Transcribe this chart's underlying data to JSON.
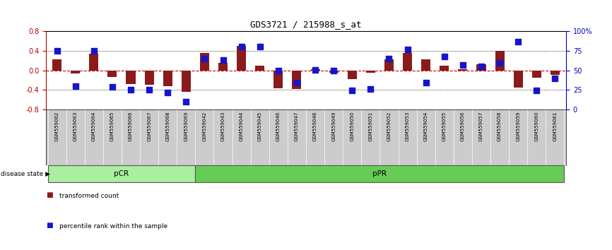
{
  "title": "GDS3721 / 215988_s_at",
  "categories": [
    "GSM559062",
    "GSM559063",
    "GSM559064",
    "GSM559065",
    "GSM559066",
    "GSM559067",
    "GSM559068",
    "GSM559069",
    "GSM559042",
    "GSM559043",
    "GSM559044",
    "GSM559045",
    "GSM559046",
    "GSM559047",
    "GSM559048",
    "GSM559049",
    "GSM559050",
    "GSM559051",
    "GSM559052",
    "GSM559053",
    "GSM559054",
    "GSM559055",
    "GSM559056",
    "GSM559057",
    "GSM559058",
    "GSM559059",
    "GSM559060",
    "GSM559061"
  ],
  "red_bars": [
    0.22,
    -0.07,
    0.34,
    -0.13,
    -0.28,
    -0.3,
    -0.32,
    -0.44,
    0.36,
    0.15,
    0.5,
    0.1,
    -0.36,
    -0.38,
    0.02,
    -0.05,
    -0.18,
    -0.05,
    0.22,
    0.36,
    0.22,
    0.1,
    0.02,
    0.12,
    0.4,
    -0.35,
    -0.15,
    -0.09
  ],
  "blue_pct": [
    75,
    30,
    75,
    29,
    25,
    25,
    22,
    10,
    65,
    63,
    80,
    80,
    50,
    34,
    51,
    50,
    24,
    26,
    65,
    77,
    34,
    68,
    57,
    55,
    60,
    87,
    24,
    40
  ],
  "pcr_count": 8,
  "ppr_count": 20,
  "ylim": [
    -0.8,
    0.8
  ],
  "y_left_ticks": [
    -0.8,
    -0.4,
    0.0,
    0.4,
    0.8
  ],
  "y_right_ticks": [
    0,
    25,
    50,
    75,
    100
  ],
  "y_right_labels": [
    "0",
    "25",
    "50",
    "75",
    "100%"
  ],
  "bar_color": "#8B1A1A",
  "dot_color": "#1515CC",
  "pcr_color": "#AAEEA0",
  "ppr_color": "#66CC55",
  "pcr_label": "pCR",
  "ppr_label": "pPR",
  "disease_state_label": "disease state",
  "legend_red": "transformed count",
  "legend_blue": "percentile rank within the sample",
  "title_color": "#000000",
  "left_axis_color": "#BB0000",
  "right_axis_color": "#0000BB",
  "xlabels_bg": "#cccccc",
  "disease_bg": "#ffffff"
}
